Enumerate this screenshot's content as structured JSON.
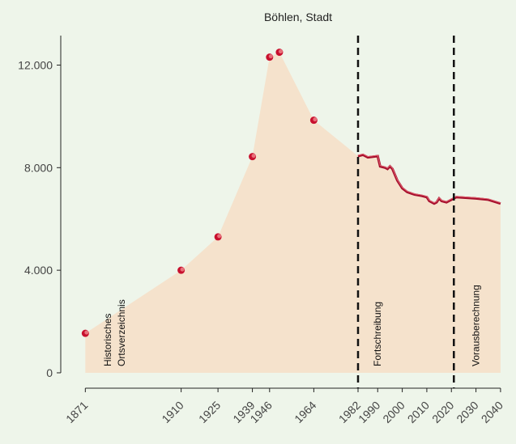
{
  "chart_data": {
    "type": "area",
    "title": "Böhlen, Stadt",
    "xlim": [
      1861,
      2043
    ],
    "ylim": [
      -600,
      13150
    ],
    "xticks": [
      1871,
      1910,
      1925,
      1939,
      1946,
      1964,
      1982,
      1990,
      2000,
      2010,
      2020,
      2030,
      2040
    ],
    "yticks": [
      0,
      {
        "value": 4000,
        "label": "4.000"
      },
      {
        "value": 8000,
        "label": "8.000"
      },
      {
        "value": 12000,
        "label": "12.000"
      }
    ],
    "area_color": "#f5e2cc",
    "series": [
      {
        "style": "points",
        "color": "#c8102e",
        "x": [
          1871,
          1910,
          1925,
          1939,
          1946,
          1950,
          1964
        ],
        "values": [
          1540,
          4000,
          5300,
          8430,
          12310,
          12500,
          9850
        ]
      },
      {
        "style": "line",
        "color": "#a50f2d",
        "x": [
          1982,
          1984,
          1986,
          1990,
          1991,
          1993,
          1994,
          1995,
          1996,
          1998,
          2000,
          2002,
          2005,
          2008,
          2010,
          2011,
          2013,
          2014,
          2015,
          2016,
          2018,
          2020,
          2021,
          2022,
          2030,
          2035,
          2040
        ],
        "values": [
          8450,
          8500,
          8400,
          8450,
          8050,
          8000,
          7950,
          8050,
          7950,
          7500,
          7200,
          7050,
          6950,
          6900,
          6850,
          6700,
          6600,
          6650,
          6800,
          6700,
          6650,
          6750,
          6800,
          6850,
          6800,
          6750,
          6600
        ]
      }
    ],
    "vlines": [
      1982,
      2021
    ],
    "annotations": [
      [
        "Historisches",
        "Ortsverzeichnis"
      ],
      [
        "Fortschreibung"
      ],
      [
        "Vorausberechnung"
      ]
    ]
  }
}
